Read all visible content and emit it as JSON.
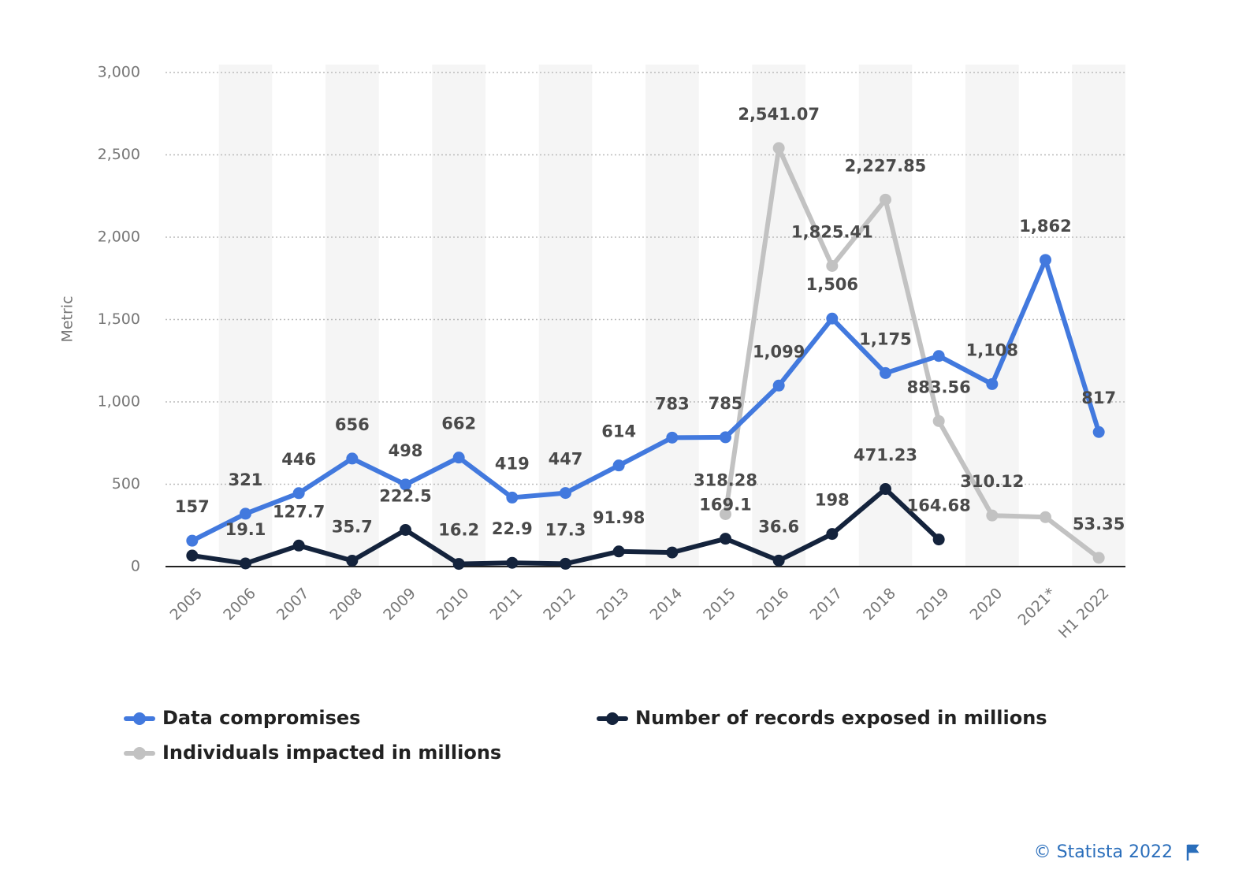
{
  "chart_data": {
    "type": "line",
    "y_label": "Metric",
    "categories": [
      "2005",
      "2006",
      "2007",
      "2008",
      "2009",
      "2010",
      "2011",
      "2012",
      "2013",
      "2014",
      "2015",
      "2016",
      "2017",
      "2018",
      "2019",
      "2020",
      "2021*",
      "H1 2022"
    ],
    "series": [
      {
        "name": "Data compromises",
        "color": "#4279de",
        "values": [
          157,
          321,
          446,
          656,
          498,
          662,
          419,
          447,
          614,
          783,
          785,
          1099,
          1506,
          1175,
          1279,
          1108,
          1862,
          817
        ],
        "value_labels": [
          "157",
          "321",
          "446",
          "656",
          "498",
          "662",
          "419",
          "447",
          "614",
          "783",
          "785",
          "1,099",
          "1,506",
          "1,175",
          null,
          "1,108",
          "1,862",
          "817"
        ]
      },
      {
        "name": "Number of records exposed in millions",
        "color": "#14233c",
        "values": [
          66.9,
          19.1,
          127.7,
          35.7,
          222.5,
          16.2,
          22.9,
          17.3,
          91.98,
          85.61,
          169.1,
          36.6,
          198,
          471.23,
          164.68,
          null,
          null,
          null
        ],
        "value_labels": [
          null,
          "19.1",
          "127.7",
          "35.7",
          "222.5",
          "16.2",
          "22.9",
          "17.3",
          "91.98",
          null,
          "169.1",
          "36.6",
          "198",
          "471.23",
          "164.68",
          null,
          null,
          null
        ]
      },
      {
        "name": "Individuals impacted in millions",
        "color": "#c2c2c2",
        "values": [
          null,
          null,
          null,
          null,
          null,
          null,
          null,
          null,
          null,
          null,
          318.28,
          2541.07,
          1825.41,
          2227.85,
          883.56,
          310.12,
          300,
          53.35
        ],
        "value_labels": [
          null,
          null,
          null,
          null,
          null,
          null,
          null,
          null,
          null,
          null,
          "318.28",
          "2,541.07",
          "1,825.41",
          "2,227.85",
          "883.56",
          "310.12",
          null,
          "53.35"
        ]
      }
    ],
    "ylim": [
      0,
      3000
    ],
    "yticks": [
      0,
      500,
      {
        "value": 1000,
        "label": "1,000"
      },
      {
        "value": 1500,
        "label": "1,500"
      },
      {
        "value": 2000,
        "label": "2,000"
      },
      {
        "value": 2500,
        "label": "2,500"
      },
      {
        "value": 3000,
        "label": "3,000"
      }
    ],
    "grid": true,
    "legend": "bottom",
    "credit": "© Statista 2022"
  }
}
